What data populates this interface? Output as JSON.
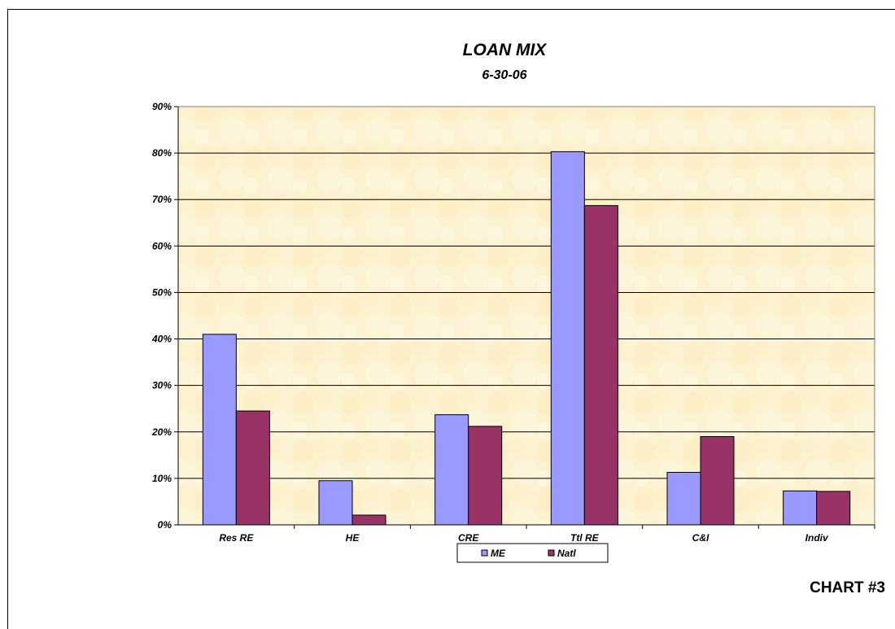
{
  "chart_data": {
    "type": "bar",
    "title": "LOAN MIX",
    "subtitle": "6-30-06",
    "categories": [
      "Res RE",
      "HE",
      "CRE",
      "Ttl RE",
      "C&I",
      "Indiv"
    ],
    "series": [
      {
        "name": "ME",
        "values": [
          41,
          9.5,
          23.7,
          80.3,
          11.3,
          7.3
        ],
        "color": "#9999ff"
      },
      {
        "name": "Natl",
        "values": [
          24.5,
          2.1,
          21.2,
          68.7,
          19.0,
          7.2
        ],
        "color": "#993366"
      }
    ],
    "y_ticks": [
      "0%",
      "10%",
      "20%",
      "30%",
      "40%",
      "50%",
      "60%",
      "70%",
      "80%",
      "90%"
    ],
    "ylim": [
      0,
      90
    ],
    "grid": true,
    "legend_position": "bottom",
    "plot_background": "#fdf3d0",
    "label": "CHART #3"
  }
}
